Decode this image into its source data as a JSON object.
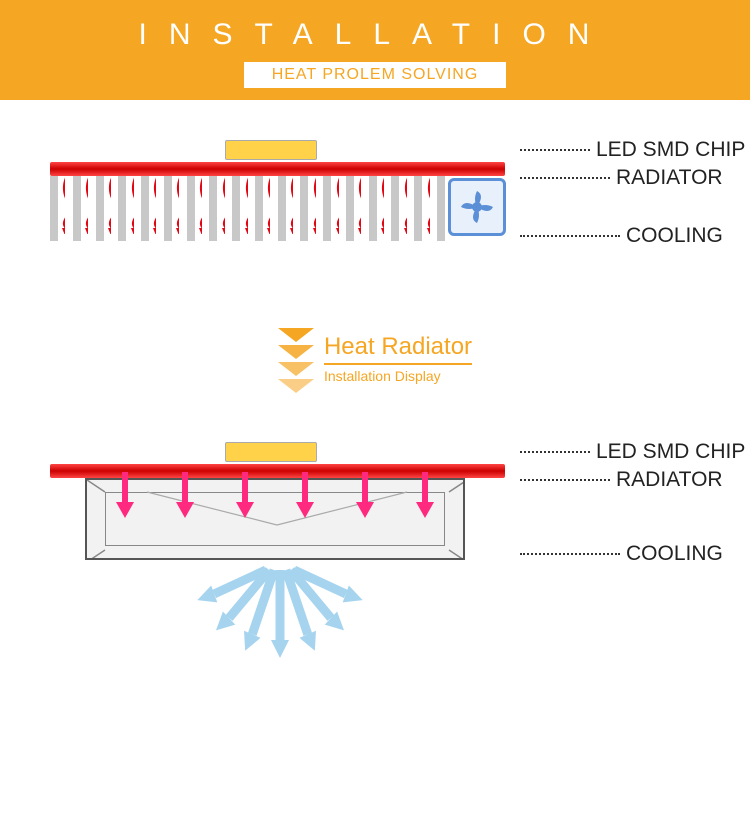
{
  "header": {
    "title": "INSTALLATION",
    "subtitle": "HEAT PROLEM SOLVING",
    "bg_color": "#f5a623",
    "title_color": "#ffffff",
    "subtitle_color": "#f5a623"
  },
  "diagram1": {
    "labels": {
      "chip": "LED SMD CHIP",
      "radiator": "RADIATOR",
      "cooling": "COOLING"
    },
    "chip_color": "#ffd24a",
    "radiator_color": "#d42020",
    "fin_color": "#c8c8c8",
    "fin_count": 18,
    "heat_arrow_color": "#e30613",
    "fan_border_color": "#5b8fd6",
    "fan_bg_color": "#e8f0fb"
  },
  "middle": {
    "title": "Heat Radiator",
    "subtitle": "Installation Display",
    "triangle_color": "#f5a623",
    "text_color": "#f5a623",
    "triangle_count": 4
  },
  "diagram2": {
    "labels": {
      "chip": "LED SMD CHIP",
      "radiator": "RADIATOR",
      "cooling": "COOLING"
    },
    "chip_color": "#ffd24a",
    "radiator_color": "#d42020",
    "pink_arrow_color": "#ff2a7f",
    "pink_arrow_count": 6,
    "box_border_color": "#555555",
    "box_bg_color": "#f2f2f2",
    "cool_arrow_color": "#a6d4ef",
    "cool_arrow_count": 7
  },
  "label_style": {
    "font_size": 21,
    "color": "#222222",
    "dotted_color": "#333333"
  }
}
